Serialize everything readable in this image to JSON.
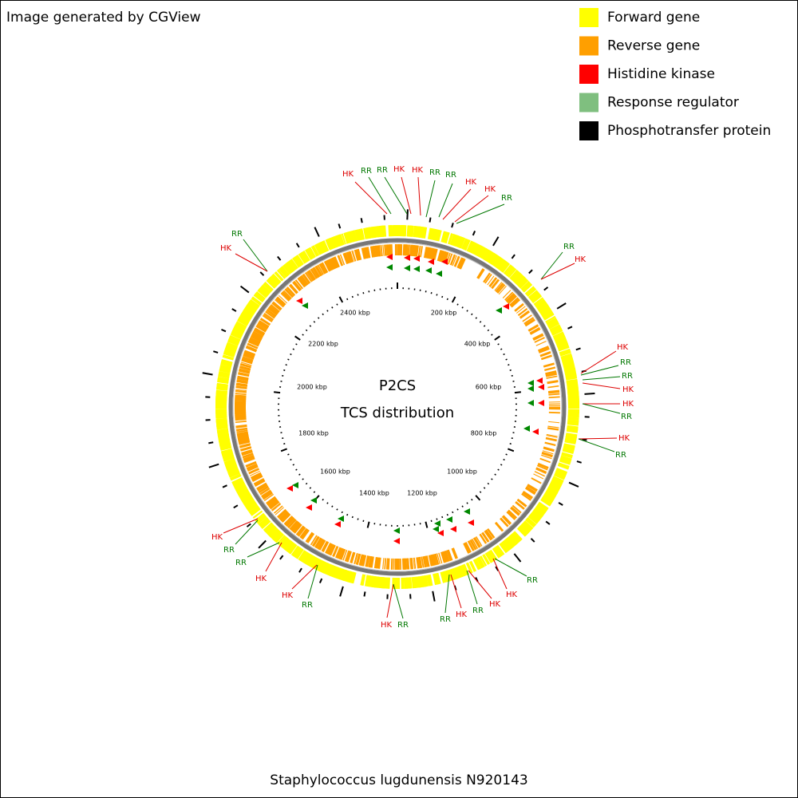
{
  "header": {
    "credit": "Image generated by CGView"
  },
  "legend": [
    {
      "label": "Forward gene",
      "color": "#ffff00"
    },
    {
      "label": "Reverse gene",
      "color": "#ff9f00"
    },
    {
      "label": "Histidine kinase",
      "color": "#ff0000"
    },
    {
      "label": "Response regulator",
      "color": "#7fbf7f"
    },
    {
      "label": "Phosphotransfer protein",
      "color": "#000000"
    }
  ],
  "center": {
    "title": "P2CS",
    "subtitle": "TCS distribution"
  },
  "scale_labels": [
    "200 kbp",
    "400 kbp",
    "600 kbp",
    "800 kbp",
    "1000 kbp",
    "1200 kbp",
    "1400 kbp",
    "1600 kbp",
    "1800 kbp",
    "2000 kbp",
    "2200 kbp",
    "2400 kbp"
  ],
  "callouts": [
    {
      "label": "HK",
      "color": "#dd0000"
    },
    {
      "label": "RR",
      "color": "#007700"
    },
    {
      "label": "RR",
      "color": "#007700"
    },
    {
      "label": "HK",
      "color": "#dd0000"
    },
    {
      "label": "HK",
      "color": "#dd0000"
    },
    {
      "label": "RR",
      "color": "#007700"
    },
    {
      "label": "RR",
      "color": "#007700"
    },
    {
      "label": "HK",
      "color": "#dd0000"
    },
    {
      "label": "HK",
      "color": "#dd0000"
    },
    {
      "label": "RR",
      "color": "#007700"
    },
    {
      "label": "RR",
      "color": "#007700"
    },
    {
      "label": "HK",
      "color": "#dd0000"
    },
    {
      "label": "RR",
      "color": "#007700"
    },
    {
      "label": "HK",
      "color": "#dd0000"
    },
    {
      "label": "HK",
      "color": "#dd0000"
    },
    {
      "label": "RR",
      "color": "#007700"
    },
    {
      "label": "RR",
      "color": "#007700"
    },
    {
      "label": "HK",
      "color": "#dd0000"
    },
    {
      "label": "HK",
      "color": "#dd0000"
    },
    {
      "label": "RR",
      "color": "#007700"
    },
    {
      "label": "HK",
      "color": "#dd0000"
    },
    {
      "label": "RR",
      "color": "#007700"
    },
    {
      "label": "RR",
      "color": "#007700"
    },
    {
      "label": "HK",
      "color": "#dd0000"
    },
    {
      "label": "HK",
      "color": "#dd0000"
    },
    {
      "label": "RR",
      "color": "#007700"
    },
    {
      "label": "HK",
      "color": "#dd0000"
    },
    {
      "label": "RR",
      "color": "#007700"
    },
    {
      "label": "HK",
      "color": "#dd0000"
    },
    {
      "label": "RR",
      "color": "#007700"
    },
    {
      "label": "HK",
      "color": "#dd0000"
    },
    {
      "label": "RR",
      "color": "#007700"
    },
    {
      "label": "HK",
      "color": "#dd0000"
    },
    {
      "label": "RR",
      "color": "#007700"
    },
    {
      "label": "RR",
      "color": "#007700"
    },
    {
      "label": "HK",
      "color": "#dd0000"
    }
  ],
  "footer": {
    "caption": "Staphylococcus lugdunensis N920143"
  }
}
